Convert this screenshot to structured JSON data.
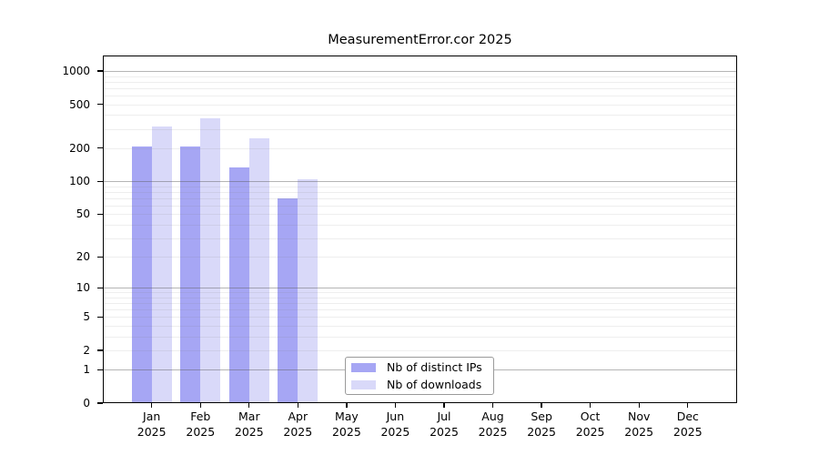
{
  "chart_data": {
    "type": "bar",
    "title": "MeasurementError.cor 2025",
    "categories": [
      "Jan",
      "Feb",
      "Mar",
      "Apr",
      "May",
      "Jun",
      "Jul",
      "Aug",
      "Sep",
      "Oct",
      "Nov",
      "Dec"
    ],
    "category_year": "2025",
    "series": [
      {
        "name": "Nb of distinct IPs",
        "color": "#a6a6f4",
        "values": [
          207,
          209,
          135,
          70,
          0,
          0,
          0,
          0,
          0,
          0,
          0,
          0
        ]
      },
      {
        "name": "Nb of downloads",
        "color": "#d9d9f9",
        "values": [
          314,
          372,
          246,
          105,
          0,
          0,
          0,
          0,
          0,
          0,
          0,
          0
        ]
      }
    ],
    "y_axis": {
      "scale": "log1p",
      "tick_values": [
        0,
        1,
        2,
        5,
        10,
        20,
        50,
        100,
        200,
        500,
        1000
      ],
      "top_value": 1380,
      "major_gridlines": [
        1,
        10,
        100,
        1000
      ],
      "minor_gridlines": [
        2,
        3,
        4,
        5,
        6,
        7,
        8,
        9,
        20,
        30,
        40,
        50,
        60,
        70,
        80,
        90,
        200,
        300,
        400,
        500,
        600,
        700,
        800,
        900
      ]
    },
    "xlabel": "",
    "ylabel": "",
    "grid": true,
    "legend_position": "bottom-center"
  },
  "legend": {
    "entries": [
      "Nb of distinct IPs",
      "Nb of downloads"
    ]
  },
  "colors": {
    "distinct_ips_bar": "#a6a6f4",
    "downloads_bar": "#d9d9f9",
    "axis": "#000000",
    "background": "#ffffff"
  }
}
